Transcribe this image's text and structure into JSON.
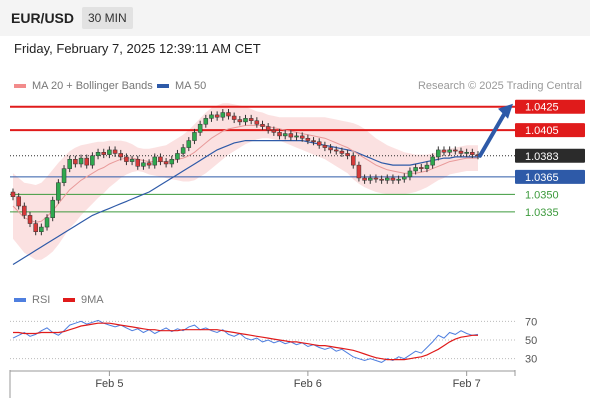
{
  "header": {
    "symbol": "EUR/USD",
    "timeframe": "30 MIN"
  },
  "timestamp": "Friday, February 7, 2025 12:39:11 AM CET",
  "legend": {
    "bollinger": {
      "label": "MA 20 + Bollinger Bands",
      "color": "#f28b8b"
    },
    "ma50": {
      "label": "MA 50",
      "color": "#2e5aa8"
    }
  },
  "credit": "Research © 2025 Trading Central",
  "rsi_legend": {
    "rsi": {
      "label": "RSI",
      "color": "#4f7fdf"
    },
    "ma9": {
      "label": "9MA",
      "color": "#e01b1b"
    }
  },
  "chart_data": [
    {
      "type": "candlestick",
      "ylim": [
        1.0275,
        1.0435
      ],
      "x_ticks": [
        "Feb 5",
        "Feb 6",
        "Feb 7"
      ],
      "levels": [
        {
          "value": 1.0425,
          "label": "1.0425",
          "kind": "resistance",
          "color": "#e01b1b"
        },
        {
          "value": 1.0405,
          "label": "1.0405",
          "kind": "resistance",
          "color": "#e01b1b"
        },
        {
          "value": 1.0383,
          "label": "1.0383",
          "kind": "current",
          "color": "#2b2b2b"
        },
        {
          "value": 1.0365,
          "label": "1.0365",
          "kind": "pivot",
          "color": "#2e5aa8"
        },
        {
          "value": 1.035,
          "label": "1.0350",
          "kind": "support",
          "color": "#3c9a3c"
        },
        {
          "value": 1.0335,
          "label": "1.0335",
          "kind": "support",
          "color": "#3c9a3c"
        }
      ],
      "close": [
        1.0348,
        1.034,
        1.0332,
        1.0325,
        1.0318,
        1.0322,
        1.033,
        1.0345,
        1.036,
        1.0372,
        1.038,
        1.0376,
        1.0381,
        1.0375,
        1.0383,
        1.0386,
        1.0384,
        1.0388,
        1.0385,
        1.0382,
        1.0378,
        1.038,
        1.0374,
        1.0377,
        1.0375,
        1.0382,
        1.0378,
        1.0376,
        1.038,
        1.0385,
        1.039,
        1.0396,
        1.0403,
        1.041,
        1.0415,
        1.0418,
        1.0416,
        1.042,
        1.0417,
        1.0414,
        1.0412,
        1.0415,
        1.0413,
        1.041,
        1.0408,
        1.0405,
        1.0403,
        1.04,
        1.0402,
        1.0399,
        1.04,
        1.0398,
        1.0396,
        1.0395,
        1.0392,
        1.039,
        1.0388,
        1.0387,
        1.0385,
        1.0383,
        1.0375,
        1.0364,
        1.0362,
        1.0364,
        1.0363,
        1.0362,
        1.0364,
        1.0362,
        1.0363,
        1.0365,
        1.037,
        1.0373,
        1.0372,
        1.0375,
        1.0382,
        1.0388,
        1.0386,
        1.0388,
        1.0387,
        1.0385,
        1.0386,
        1.0384,
        1.0383
      ],
      "ma20": [
        1.034,
        1.0335,
        1.033,
        1.0328,
        1.0326,
        1.0327,
        1.0331,
        1.0336,
        1.0342,
        1.0348,
        1.0354,
        1.0358,
        1.0362,
        1.0365,
        1.0368,
        1.0371,
        1.0373,
        1.0376,
        1.0378,
        1.038,
        1.0381,
        1.0381,
        1.038,
        1.0379,
        1.0378,
        1.0378,
        1.0378,
        1.0378,
        1.0379,
        1.038,
        1.0381,
        1.0383,
        1.0386,
        1.039,
        1.0394,
        1.0398,
        1.0401,
        1.0404,
        1.0406,
        1.0407,
        1.0408,
        1.0409,
        1.0409,
        1.0409,
        1.0409,
        1.0408,
        1.0407,
        1.0406,
        1.0405,
        1.0404,
        1.0403,
        1.0402,
        1.0401,
        1.04,
        1.0399,
        1.0398,
        1.0396,
        1.0394,
        1.0392,
        1.039,
        1.0387,
        1.0384,
        1.0381,
        1.0378,
        1.0375,
        1.0373,
        1.0371,
        1.037,
        1.0369,
        1.0368,
        1.0368,
        1.0368,
        1.0369,
        1.037,
        1.0372,
        1.0374,
        1.0376,
        1.0378,
        1.0379,
        1.038,
        1.0381,
        1.0381,
        1.0381
      ],
      "band_width": [
        0.0028,
        0.0029,
        0.003,
        0.0031,
        0.0032,
        0.0033,
        0.0034,
        0.0035,
        0.0035,
        0.0034,
        0.0033,
        0.0032,
        0.003,
        0.0028,
        0.0026,
        0.0024,
        0.0022,
        0.002,
        0.0018,
        0.0016,
        0.0014,
        0.0012,
        0.001,
        0.001,
        0.0011,
        0.0012,
        0.0013,
        0.0014,
        0.0016,
        0.0018,
        0.002,
        0.0022,
        0.0024,
        0.0025,
        0.0026,
        0.0026,
        0.0025,
        0.0024,
        0.0022,
        0.002,
        0.0018,
        0.0016,
        0.0014,
        0.0012,
        0.0011,
        0.001,
        0.001,
        0.001,
        0.0011,
        0.0012,
        0.0013,
        0.0014,
        0.0015,
        0.0016,
        0.0017,
        0.0018,
        0.0019,
        0.002,
        0.0021,
        0.0022,
        0.0024,
        0.0025,
        0.0025,
        0.0024,
        0.0023,
        0.0022,
        0.0021,
        0.002,
        0.0019,
        0.0018,
        0.0017,
        0.0016,
        0.0015,
        0.0014,
        0.0013,
        0.0012,
        0.0012,
        0.0011,
        0.0011,
        0.0011,
        0.0011,
        0.0011,
        0.0011
      ],
      "ma50": [
        1.029,
        1.0293,
        1.0296,
        1.0299,
        1.0302,
        1.0305,
        1.0308,
        1.0311,
        1.0314,
        1.0317,
        1.032,
        1.0323,
        1.0326,
        1.0329,
        1.0332,
        1.0334,
        1.0336,
        1.0338,
        1.034,
        1.0342,
        1.0344,
        1.0346,
        1.0348,
        1.035,
        1.0352,
        1.0355,
        1.0358,
        1.0361,
        1.0364,
        1.0367,
        1.037,
        1.0373,
        1.0376,
        1.0379,
        1.0382,
        1.0385,
        1.0388,
        1.039,
        1.0392,
        1.0394,
        1.0395,
        1.0396,
        1.0396,
        1.0396,
        1.0396,
        1.0396,
        1.0396,
        1.0396,
        1.0396,
        1.0396,
        1.0396,
        1.0396,
        1.0395,
        1.0394,
        1.0393,
        1.0392,
        1.0391,
        1.039,
        1.0389,
        1.0388,
        1.0387,
        1.0385,
        1.0383,
        1.0381,
        1.0379,
        1.0377,
        1.0376,
        1.0375,
        1.0375,
        1.0375,
        1.0375,
        1.0376,
        1.0377,
        1.0378,
        1.0379,
        1.038,
        1.0381,
        1.0381,
        1.0382,
        1.0382,
        1.0382,
        1.0382,
        1.0382
      ],
      "projection": {
        "from": 1.0383,
        "to": 1.0425
      }
    },
    {
      "type": "line",
      "name": "RSI",
      "ylim": [
        20,
        80
      ],
      "y_ticks": [
        70,
        50,
        30
      ],
      "rsi": [
        52,
        55,
        58,
        54,
        56,
        60,
        63,
        58,
        55,
        60,
        66,
        68,
        70,
        67,
        69,
        71,
        68,
        66,
        64,
        66,
        63,
        60,
        62,
        58,
        61,
        57,
        60,
        63,
        59,
        62,
        60,
        64,
        66,
        61,
        63,
        60,
        58,
        61,
        56,
        54,
        57,
        52,
        50,
        52,
        48,
        50,
        47,
        49,
        46,
        48,
        45,
        47,
        43,
        45,
        42,
        40,
        42,
        38,
        40,
        36,
        32,
        30,
        28,
        30,
        28,
        26,
        30,
        28,
        32,
        30,
        34,
        38,
        36,
        42,
        48,
        55,
        52,
        58,
        56,
        60,
        57,
        55,
        56
      ],
      "ma9": [
        58,
        58,
        57,
        57,
        57,
        58,
        58,
        58,
        58,
        59,
        61,
        63,
        65,
        66,
        67,
        68,
        68,
        68,
        67,
        66,
        65,
        64,
        63,
        62,
        61,
        61,
        60,
        60,
        60,
        60,
        61,
        61,
        61,
        61,
        61,
        61,
        61,
        60,
        59,
        58,
        57,
        56,
        55,
        54,
        53,
        52,
        51,
        50,
        49,
        48,
        48,
        47,
        46,
        45,
        44,
        44,
        43,
        42,
        41,
        40,
        39,
        37,
        35,
        33,
        31,
        30,
        29,
        29,
        29,
        29,
        30,
        31,
        32,
        34,
        37,
        40,
        44,
        48,
        51,
        53,
        54,
        55,
        55
      ]
    }
  ]
}
